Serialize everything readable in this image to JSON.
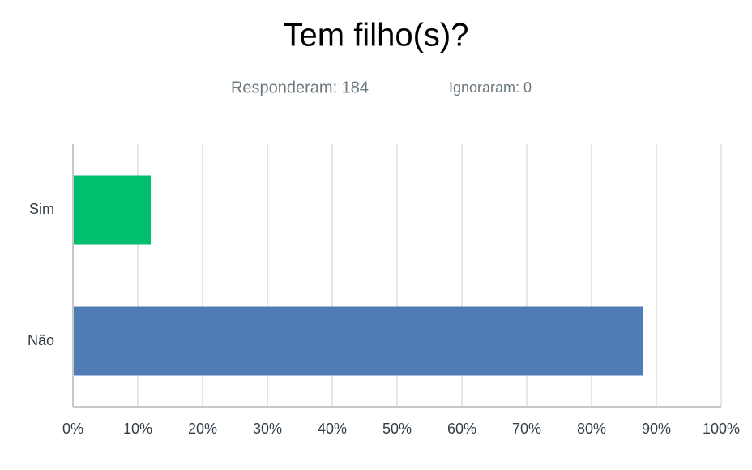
{
  "chart_data": {
    "type": "bar",
    "orientation": "horizontal",
    "title": "Tem filho(s)?",
    "subtitles": [
      "Responderam: 184",
      "Ignoraram: 0"
    ],
    "categories": [
      "Sim",
      "Não"
    ],
    "values": [
      12,
      88
    ],
    "colors": [
      "#00bf6f",
      "#507cb6"
    ],
    "xlim": [
      0,
      100
    ],
    "xticks": [
      {
        "value": 0,
        "label": "0%"
      },
      {
        "value": 10,
        "label": "10%"
      },
      {
        "value": 20,
        "label": "20%"
      },
      {
        "value": 30,
        "label": "30%"
      },
      {
        "value": 40,
        "label": "40%"
      },
      {
        "value": 50,
        "label": "50%"
      },
      {
        "value": 60,
        "label": "60%"
      },
      {
        "value": 70,
        "label": "70%"
      },
      {
        "value": 80,
        "label": "80%"
      },
      {
        "value": 90,
        "label": "90%"
      },
      {
        "value": 100,
        "label": "100%"
      }
    ],
    "grid": true
  }
}
